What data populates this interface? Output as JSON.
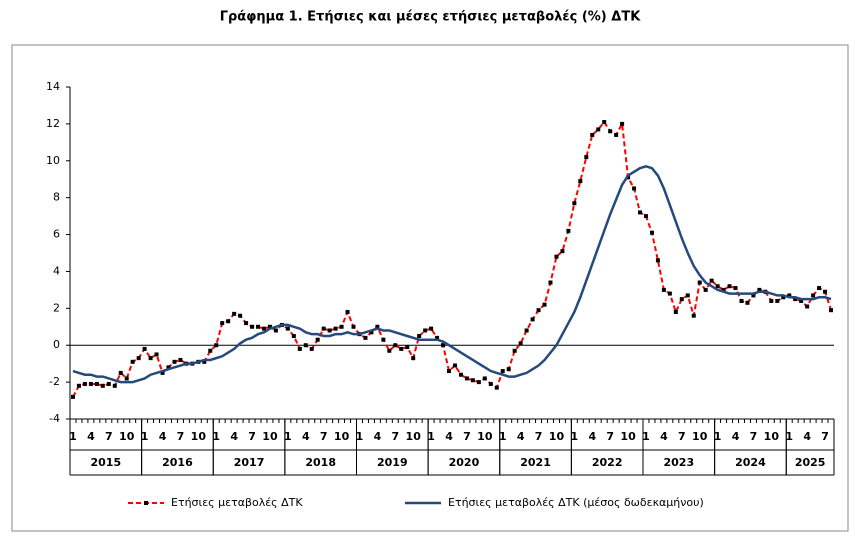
{
  "chart_data": {
    "type": "line",
    "title": "Γράφημα 1. Ετήσιες και μέσες ετήσιες μεταβολές (%) ΔΤΚ",
    "categories": [
      "1",
      null,
      null,
      "4",
      null,
      null,
      "7",
      null,
      null,
      "10",
      null,
      null,
      "1",
      null,
      null,
      "4",
      null,
      null,
      "7",
      null,
      null,
      "10",
      null,
      null,
      "1",
      null,
      null,
      "4",
      null,
      null,
      "7",
      null,
      null,
      "10",
      null,
      null,
      "1",
      null,
      null,
      "4",
      null,
      null,
      "7",
      null,
      null,
      "10",
      null,
      null,
      "1",
      null,
      null,
      "4",
      null,
      null,
      "7",
      null,
      null,
      "10",
      null,
      null,
      "1",
      null,
      null,
      "4",
      null,
      null,
      "7",
      null,
      null,
      "10",
      null,
      null,
      "1",
      null,
      null,
      "4",
      null,
      null,
      "7",
      null,
      null,
      "10",
      null,
      null,
      "1",
      null,
      null,
      "4",
      null,
      null,
      "7",
      null,
      null,
      "10",
      null,
      null,
      "1",
      null,
      null,
      "4",
      null,
      null,
      "7",
      null,
      null,
      "10",
      null,
      null,
      "1",
      null,
      null,
      "4",
      null,
      null,
      "7",
      null,
      null,
      "10",
      null,
      null,
      "1",
      null,
      null,
      "4",
      null,
      null,
      "7",
      null
    ],
    "years": [
      "2015",
      "2016",
      "2017",
      "2018",
      "2019",
      "2020",
      "2021",
      "2022",
      "2023",
      "2024",
      "2025"
    ],
    "series": [
      {
        "name": "Ετήσιες μεταβολές ΔΤΚ",
        "color": "#ff0000",
        "dashed": true,
        "markers": true,
        "values": [
          -2.8,
          -2.2,
          -2.1,
          -2.1,
          -2.1,
          -2.2,
          -2.1,
          -2.2,
          -1.5,
          -1.8,
          -0.9,
          -0.7,
          -0.2,
          -0.7,
          -0.5,
          -1.5,
          -1.2,
          -0.9,
          -0.8,
          -1.0,
          -1.0,
          -0.9,
          -0.9,
          -0.3,
          0.0,
          1.2,
          1.3,
          1.7,
          1.6,
          1.2,
          1.0,
          1.0,
          0.9,
          1.0,
          0.8,
          1.1,
          0.9,
          0.5,
          -0.2,
          0.0,
          -0.2,
          0.3,
          0.9,
          0.8,
          0.9,
          1.0,
          1.8,
          1.0,
          0.6,
          0.4,
          0.7,
          1.0,
          0.3,
          -0.3,
          0.0,
          -0.2,
          -0.1,
          -0.7,
          0.5,
          0.8,
          0.9,
          0.4,
          0.0,
          -1.4,
          -1.1,
          -1.6,
          -1.8,
          -1.9,
          -2.0,
          -1.8,
          -2.1,
          -2.3,
          -1.4,
          -1.3,
          -0.3,
          0.1,
          0.8,
          1.4,
          1.9,
          2.2,
          3.4,
          4.8,
          5.1,
          6.2,
          7.7,
          8.9,
          10.2,
          11.4,
          11.7,
          12.1,
          11.6,
          11.4,
          12.0,
          9.1,
          8.5,
          7.2,
          7.0,
          6.1,
          4.6,
          3.0,
          2.8,
          1.8,
          2.5,
          2.7,
          1.6,
          3.4,
          3.0,
          3.5,
          3.2,
          3.0,
          3.2,
          3.1,
          2.4,
          2.3,
          2.7,
          3.0,
          2.9,
          2.4,
          2.4,
          2.6,
          2.7,
          2.5,
          2.4,
          2.1,
          2.7,
          3.1,
          2.9,
          1.9
        ]
      },
      {
        "name": "Ετήσιες μεταβολές ΔΤΚ (μέσος δωδεκαμήνου)",
        "color": "#264a7c",
        "dashed": false,
        "markers": false,
        "values": [
          -1.4,
          -1.5,
          -1.6,
          -1.6,
          -1.7,
          -1.7,
          -1.8,
          -1.9,
          -2.0,
          -2.0,
          -2.0,
          -1.9,
          -1.8,
          -1.6,
          -1.5,
          -1.4,
          -1.3,
          -1.2,
          -1.1,
          -1.0,
          -1.0,
          -0.9,
          -0.8,
          -0.8,
          -0.7,
          -0.6,
          -0.4,
          -0.2,
          0.1,
          0.3,
          0.4,
          0.6,
          0.7,
          0.9,
          1.0,
          1.1,
          1.1,
          1.0,
          0.9,
          0.7,
          0.6,
          0.6,
          0.5,
          0.5,
          0.6,
          0.6,
          0.7,
          0.6,
          0.6,
          0.7,
          0.8,
          0.9,
          0.8,
          0.8,
          0.7,
          0.6,
          0.5,
          0.4,
          0.3,
          0.3,
          0.3,
          0.3,
          0.2,
          0.0,
          -0.2,
          -0.4,
          -0.6,
          -0.8,
          -1.0,
          -1.2,
          -1.4,
          -1.5,
          -1.6,
          -1.7,
          -1.7,
          -1.6,
          -1.5,
          -1.3,
          -1.1,
          -0.8,
          -0.4,
          0.0,
          0.6,
          1.2,
          1.8,
          2.6,
          3.5,
          4.4,
          5.3,
          6.2,
          7.1,
          7.9,
          8.7,
          9.2,
          9.4,
          9.6,
          9.7,
          9.6,
          9.2,
          8.5,
          7.6,
          6.7,
          5.8,
          5.0,
          4.3,
          3.8,
          3.4,
          3.2,
          3.0,
          2.9,
          2.8,
          2.8,
          2.8,
          2.8,
          2.8,
          2.9,
          2.9,
          2.8,
          2.7,
          2.7,
          2.6,
          2.6,
          2.5,
          2.5,
          2.5,
          2.6,
          2.6,
          2.5
        ]
      }
    ],
    "ylim": [
      -4,
      14
    ],
    "yticks": [
      -4,
      -2,
      0,
      2,
      4,
      6,
      8,
      10,
      12,
      14
    ],
    "grid": false
  }
}
